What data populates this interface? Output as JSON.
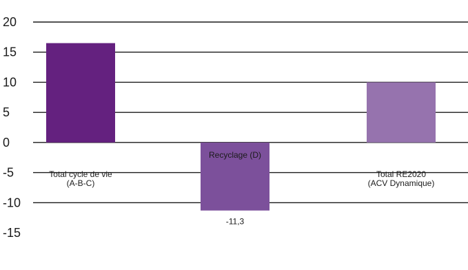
{
  "chart_data": {
    "type": "bar",
    "categories": [
      [
        "Total cycle de vie",
        "(A-B-C)"
      ],
      [
        "Recyclage (D)"
      ],
      [
        "Total RE2020",
        "(ACV Dynamique)"
      ]
    ],
    "values": [
      16.5,
      -11.3,
      10
    ],
    "data_labels": [
      "",
      "-11,3",
      ""
    ],
    "bar_colors": [
      "#64217f",
      "#7c509b",
      "#9673ae"
    ],
    "ylim": [
      -15,
      20
    ],
    "yticks": [
      "20",
      "15",
      "10",
      "5",
      "0",
      "-5",
      "-10",
      "-15"
    ],
    "ytick_values": [
      20,
      15,
      10,
      5,
      0,
      -5,
      -10,
      -15
    ],
    "title": "",
    "xlabel": "",
    "ylabel": "",
    "grid": true
  }
}
